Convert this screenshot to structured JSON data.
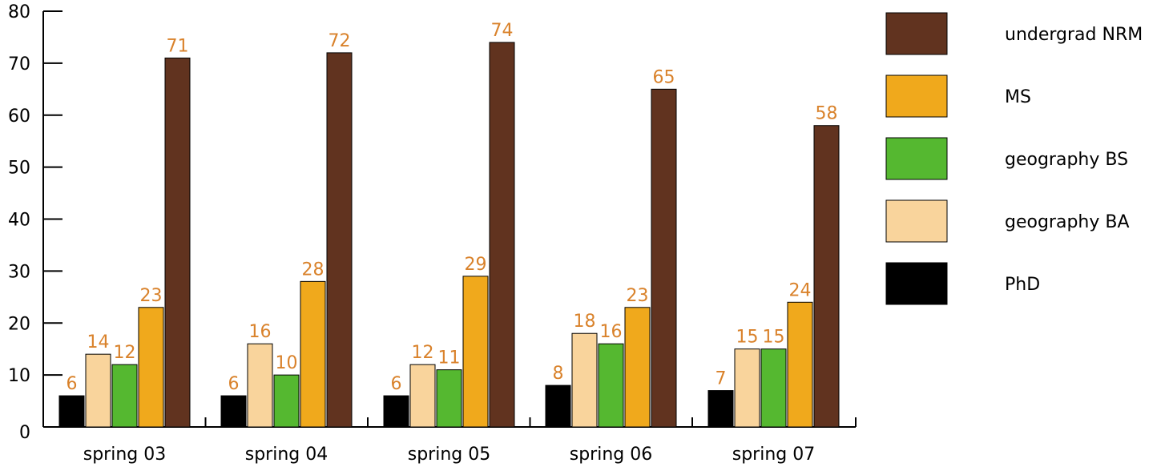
{
  "chart_data": {
    "type": "bar",
    "title": "",
    "xlabel": "",
    "ylabel": "",
    "ylim": [
      0,
      80
    ],
    "yticks": [
      0,
      10,
      20,
      30,
      40,
      50,
      60,
      70,
      80
    ],
    "categories": [
      "spring 03",
      "spring 04",
      "spring 05",
      "spring 06",
      "spring 07"
    ],
    "series": [
      {
        "name": "PhD",
        "color": "#000000",
        "values": [
          6,
          6,
          6,
          8,
          7
        ]
      },
      {
        "name": "geography BA",
        "color": "#f9d49c",
        "values": [
          14,
          16,
          12,
          18,
          15
        ]
      },
      {
        "name": "geography BS",
        "color": "#55b830",
        "values": [
          12,
          10,
          11,
          16,
          15
        ]
      },
      {
        "name": "MS",
        "color": "#f0a91c",
        "values": [
          23,
          28,
          29,
          23,
          24
        ]
      },
      {
        "name": "undergrad NRM",
        "color": "#61331f",
        "values": [
          71,
          72,
          74,
          65,
          58
        ]
      }
    ],
    "legend_order": [
      "undergrad NRM",
      "MS",
      "geography BS",
      "geography BA",
      "PhD"
    ],
    "legend_position": "right",
    "data_label_color": "#d9822b",
    "grid": false
  }
}
